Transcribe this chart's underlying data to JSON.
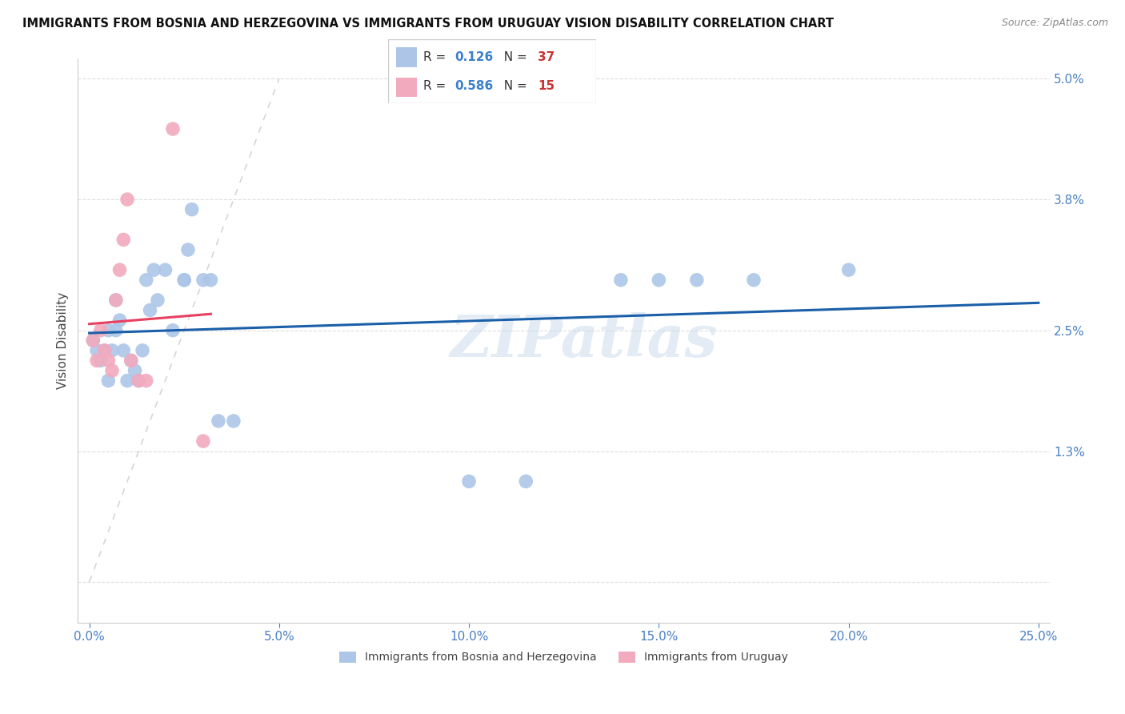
{
  "title": "IMMIGRANTS FROM BOSNIA AND HERZEGOVINA VS IMMIGRANTS FROM URUGUAY VISION DISABILITY CORRELATION CHART",
  "source": "Source: ZipAtlas.com",
  "ylabel": "Vision Disability",
  "legend_blue_r": "0.126",
  "legend_blue_n": "37",
  "legend_pink_r": "0.586",
  "legend_pink_n": "15",
  "legend_label_blue": "Immigrants from Bosnia and Herzegovina",
  "legend_label_pink": "Immigrants from Uruguay",
  "blue_color": "#adc6e8",
  "pink_color": "#f2aabe",
  "blue_line_color": "#1a5fa8",
  "pink_line_color": "#e84060",
  "diag_line_color": "#cccccc",
  "watermark_text": "ZIPatlas",
  "xlim": [
    0.0,
    0.25
  ],
  "ylim": [
    0.0,
    0.05
  ],
  "x_ticks": [
    0.0,
    0.05,
    0.1,
    0.15,
    0.2,
    0.25
  ],
  "y_ticks": [
    0.0,
    0.013,
    0.025,
    0.038,
    0.05
  ],
  "y_tick_labels": [
    "",
    "1.3%",
    "2.5%",
    "3.8%",
    "5.0%"
  ],
  "bosnia_x": [
    0.001,
    0.002,
    0.003,
    0.004,
    0.005,
    0.005,
    0.006,
    0.007,
    0.007,
    0.008,
    0.009,
    0.01,
    0.011,
    0.012,
    0.013,
    0.014,
    0.015,
    0.016,
    0.017,
    0.018,
    0.02,
    0.022,
    0.025,
    0.025,
    0.026,
    0.027,
    0.03,
    0.032,
    0.034,
    0.038,
    0.1,
    0.115,
    0.14,
    0.15,
    0.16,
    0.175,
    0.2
  ],
  "bosnia_y": [
    0.024,
    0.023,
    0.022,
    0.023,
    0.025,
    0.02,
    0.023,
    0.028,
    0.025,
    0.026,
    0.023,
    0.02,
    0.022,
    0.021,
    0.02,
    0.023,
    0.03,
    0.027,
    0.031,
    0.028,
    0.031,
    0.025,
    0.03,
    0.03,
    0.033,
    0.037,
    0.03,
    0.03,
    0.016,
    0.016,
    0.01,
    0.01,
    0.03,
    0.03,
    0.03,
    0.03,
    0.031
  ],
  "uruguay_x": [
    0.001,
    0.002,
    0.003,
    0.004,
    0.005,
    0.006,
    0.007,
    0.008,
    0.009,
    0.01,
    0.011,
    0.013,
    0.015,
    0.022,
    0.03
  ],
  "uruguay_y": [
    0.024,
    0.022,
    0.025,
    0.023,
    0.022,
    0.021,
    0.028,
    0.031,
    0.034,
    0.038,
    0.022,
    0.02,
    0.02,
    0.045,
    0.014
  ]
}
